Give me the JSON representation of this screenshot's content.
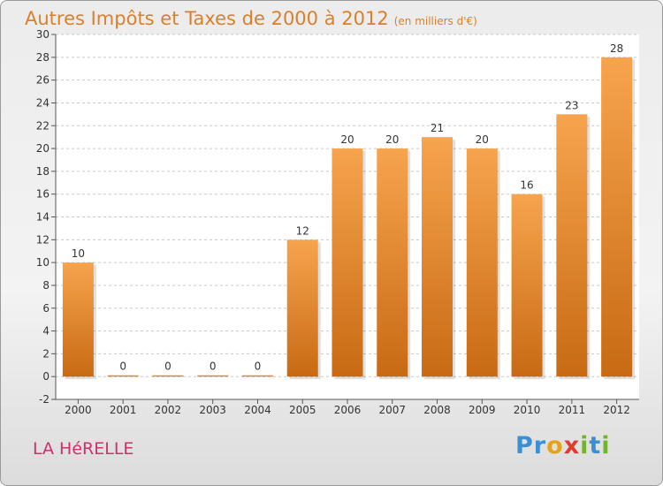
{
  "header": {
    "title": "Autres Impôts et Taxes de 2000 à 2012",
    "subtitle": "(en milliers d'€)"
  },
  "footer": {
    "place": "LA HéRELLE",
    "logo_letters": [
      "P",
      "r",
      "o",
      "x",
      "i",
      "t",
      "i"
    ],
    "logo_colors": [
      "#3a8fd6",
      "#3a8fd6",
      "#e8a21a",
      "#e23b2c",
      "#72b52c",
      "#3a8fd6",
      "#72b52c"
    ]
  },
  "chart_data": {
    "type": "bar",
    "categories": [
      "2000",
      "2001",
      "2002",
      "2003",
      "2004",
      "2005",
      "2006",
      "2007",
      "2008",
      "2009",
      "2010",
      "2011",
      "2012"
    ],
    "values": [
      10,
      0,
      0,
      0,
      0,
      12,
      20,
      20,
      21,
      20,
      16,
      23,
      28
    ],
    "data_labels": [
      "10",
      "0",
      "0",
      "0",
      "0",
      "12",
      "20",
      "20",
      "21",
      "20",
      "16",
      "23",
      "28"
    ],
    "yticks": [
      -2,
      0,
      2,
      4,
      6,
      8,
      10,
      12,
      14,
      16,
      18,
      20,
      22,
      24,
      26,
      28,
      30
    ],
    "ylim": [
      -2,
      30
    ],
    "grid": "horizontal dashed",
    "bar_color_top": "#f7a44e",
    "bar_color_bottom": "#c86a14",
    "title": "Autres Impôts et Taxes de 2000 à 2012"
  }
}
